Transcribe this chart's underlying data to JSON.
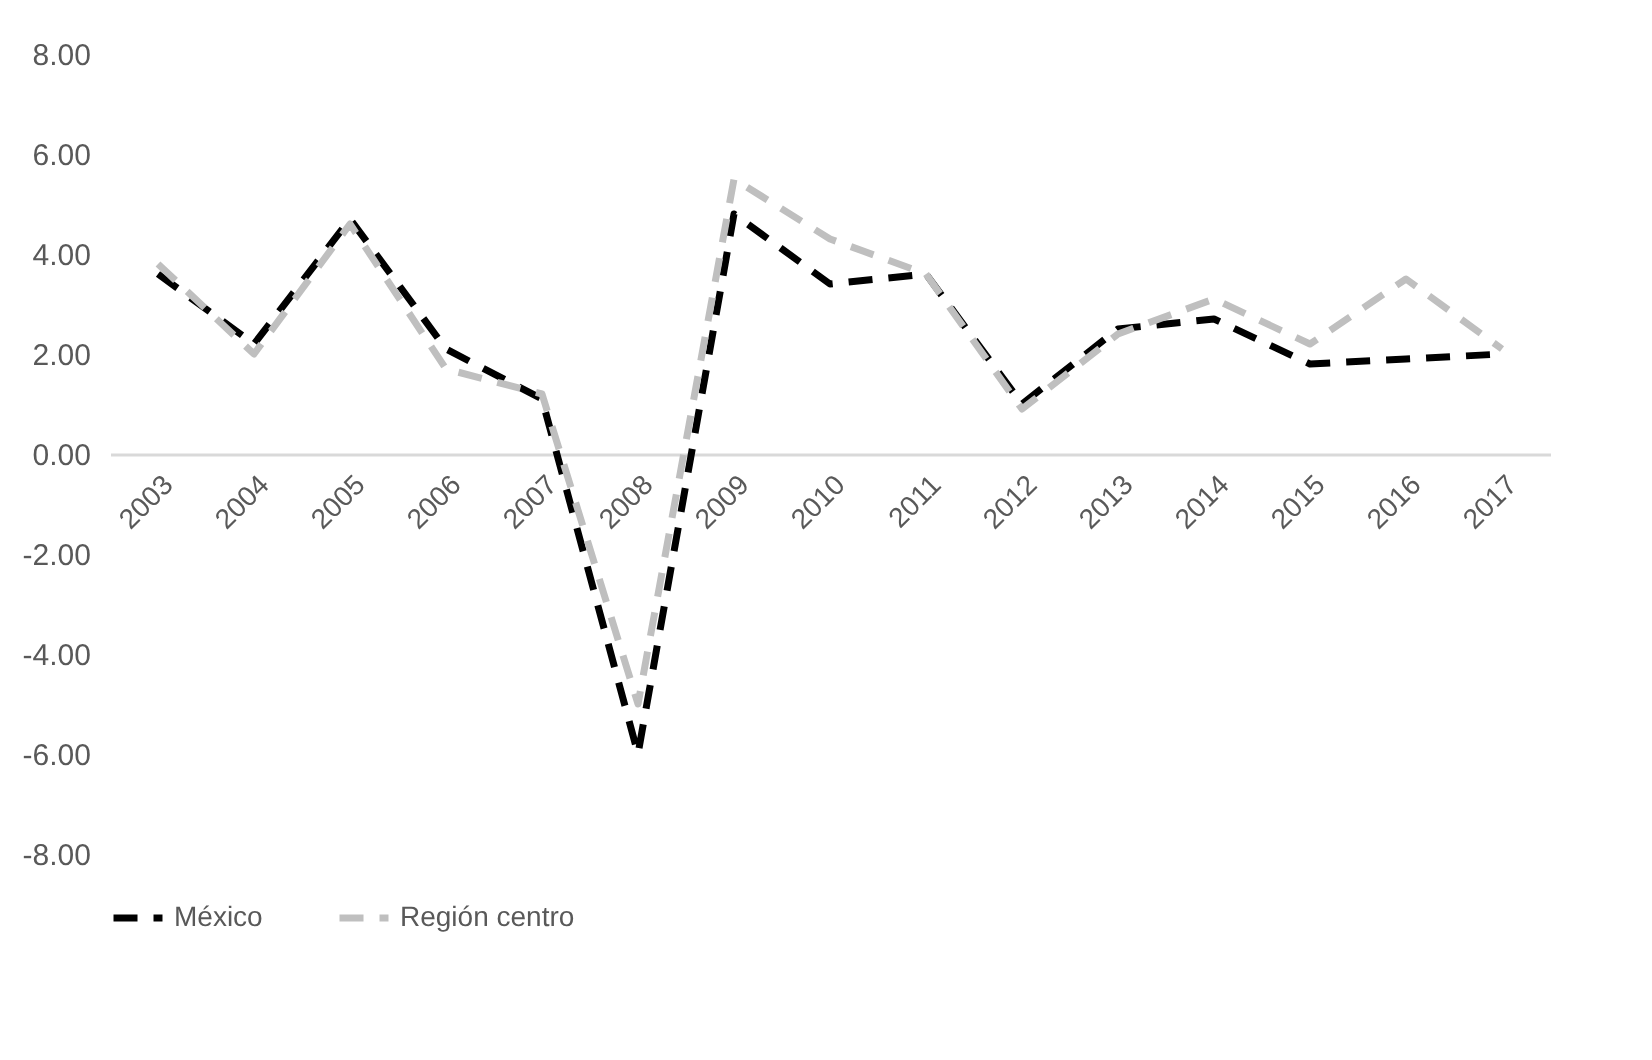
{
  "chart_data": {
    "type": "line",
    "categories": [
      "2003",
      "2004",
      "2005",
      "2006",
      "2007",
      "2008",
      "2009",
      "2010",
      "2011",
      "2012",
      "2013",
      "2014",
      "2015",
      "2016",
      "2017"
    ],
    "series": [
      {
        "name": "México",
        "color": "#000000",
        "values": [
          3.6,
          2.2,
          4.7,
          2.1,
          1.1,
          -6.0,
          4.8,
          3.4,
          3.6,
          1.0,
          2.5,
          2.7,
          1.8,
          1.9,
          2.0
        ]
      },
      {
        "name": "Región centro",
        "color": "#bfbfbf",
        "values": [
          3.8,
          2.0,
          4.6,
          1.7,
          1.2,
          -5.0,
          5.5,
          4.3,
          3.6,
          0.9,
          2.4,
          3.1,
          2.2,
          3.5,
          2.1
        ]
      }
    ],
    "ylim": [
      -8,
      8
    ],
    "yticks": [
      {
        "value": -8,
        "label": "-8.00"
      },
      {
        "value": -6,
        "label": "-6.00"
      },
      {
        "value": -4,
        "label": "-4.00"
      },
      {
        "value": -2,
        "label": "-2.00"
      },
      {
        "value": 0,
        "label": "0.00"
      },
      {
        "value": 2,
        "label": "2.00"
      },
      {
        "value": 4,
        "label": "4.00"
      },
      {
        "value": 6,
        "label": "6.00"
      },
      {
        "value": 8,
        "label": "8.00"
      }
    ],
    "grid": false,
    "legend": "bottom",
    "line_style": "dashed",
    "marker": "none"
  }
}
